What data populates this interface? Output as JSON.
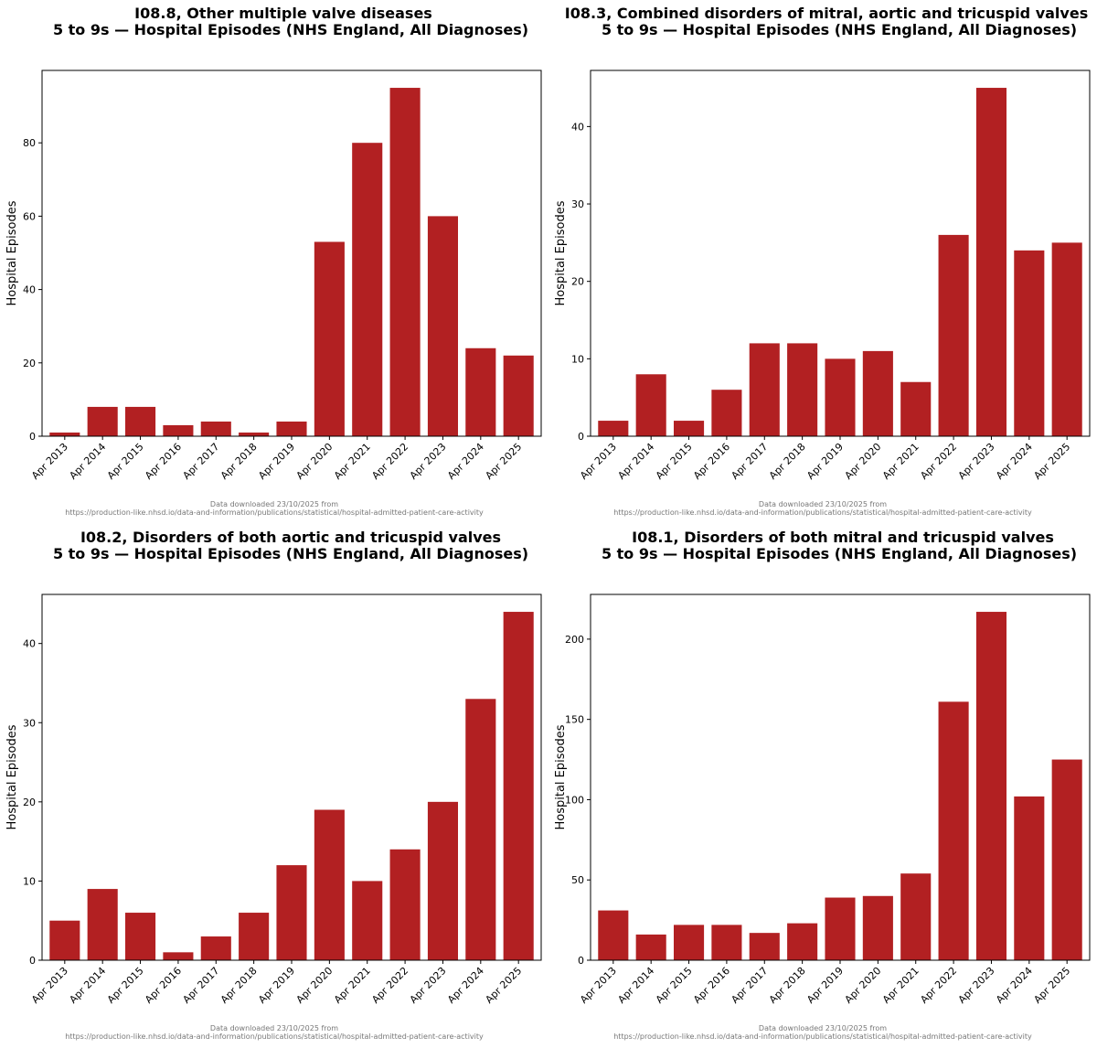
{
  "bar_color": "#b22022",
  "chart_data": [
    {
      "type": "bar",
      "title": "I08.8,  Other multiple valve diseases",
      "subtitle": "5 to 9s — Hospital Episodes (NHS England, All Diagnoses)",
      "xlabel": "",
      "ylabel": "Hospital Episodes",
      "categories": [
        "Apr 2013",
        "Apr 2014",
        "Apr 2015",
        "Apr 2016",
        "Apr 2017",
        "Apr 2018",
        "Apr 2019",
        "Apr 2020",
        "Apr 2021",
        "Apr 2022",
        "Apr 2023",
        "Apr 2024",
        "Apr 2025"
      ],
      "values": [
        1,
        8,
        8,
        3,
        4,
        1,
        4,
        53,
        80,
        95,
        60,
        24,
        22
      ],
      "ylim": [
        0,
        99.75
      ],
      "yticks": [
        0,
        20,
        40,
        60,
        80
      ],
      "source_line1": "Data downloaded 23/10/2025 from",
      "source_line2": "https://production-like.nhsd.io/data-and-information/publications/statistical/hospital-admitted-patient-care-activity"
    },
    {
      "type": "bar",
      "title": "I08.3,  Combined disorders of mitral, aortic and tricuspid valves",
      "subtitle": "5 to 9s — Hospital Episodes (NHS England, All Diagnoses)",
      "xlabel": "",
      "ylabel": "Hospital Episodes",
      "categories": [
        "Apr 2013",
        "Apr 2014",
        "Apr 2015",
        "Apr 2016",
        "Apr 2017",
        "Apr 2018",
        "Apr 2019",
        "Apr 2020",
        "Apr 2021",
        "Apr 2022",
        "Apr 2023",
        "Apr 2024",
        "Apr 2025"
      ],
      "values": [
        2,
        8,
        2,
        6,
        12,
        12,
        10,
        11,
        7,
        26,
        45,
        24,
        25
      ],
      "ylim": [
        0,
        47.25
      ],
      "yticks": [
        0,
        10,
        20,
        30,
        40
      ],
      "source_line1": "Data downloaded 23/10/2025 from",
      "source_line2": "https://production-like.nhsd.io/data-and-information/publications/statistical/hospital-admitted-patient-care-activity"
    },
    {
      "type": "bar",
      "title": "I08.2,  Disorders of both aortic and tricuspid valves",
      "subtitle": "5 to 9s — Hospital Episodes (NHS England, All Diagnoses)",
      "xlabel": "",
      "ylabel": "Hospital Episodes",
      "categories": [
        "Apr 2013",
        "Apr 2014",
        "Apr 2015",
        "Apr 2016",
        "Apr 2017",
        "Apr 2018",
        "Apr 2019",
        "Apr 2020",
        "Apr 2021",
        "Apr 2022",
        "Apr 2023",
        "Apr 2024",
        "Apr 2025"
      ],
      "values": [
        5,
        9,
        6,
        1,
        3,
        6,
        12,
        19,
        10,
        14,
        20,
        33,
        44
      ],
      "ylim": [
        0,
        46.2
      ],
      "yticks": [
        0,
        10,
        20,
        30,
        40
      ],
      "source_line1": "Data downloaded 23/10/2025 from",
      "source_line2": "https://production-like.nhsd.io/data-and-information/publications/statistical/hospital-admitted-patient-care-activity"
    },
    {
      "type": "bar",
      "title": "I08.1,  Disorders of both mitral and tricuspid valves",
      "subtitle": "5 to 9s — Hospital Episodes (NHS England, All Diagnoses)",
      "xlabel": "",
      "ylabel": "Hospital Episodes",
      "categories": [
        "Apr 2013",
        "Apr 2014",
        "Apr 2015",
        "Apr 2016",
        "Apr 2017",
        "Apr 2018",
        "Apr 2019",
        "Apr 2020",
        "Apr 2021",
        "Apr 2022",
        "Apr 2023",
        "Apr 2024",
        "Apr 2025"
      ],
      "values": [
        31,
        16,
        22,
        22,
        17,
        23,
        39,
        40,
        54,
        161,
        217,
        102,
        125
      ],
      "ylim": [
        0,
        227.85
      ],
      "yticks": [
        0,
        50,
        100,
        150,
        200
      ],
      "source_line1": "Data downloaded 23/10/2025 from",
      "source_line2": "https://production-like.nhsd.io/data-and-information/publications/statistical/hospital-admitted-patient-care-activity"
    }
  ]
}
